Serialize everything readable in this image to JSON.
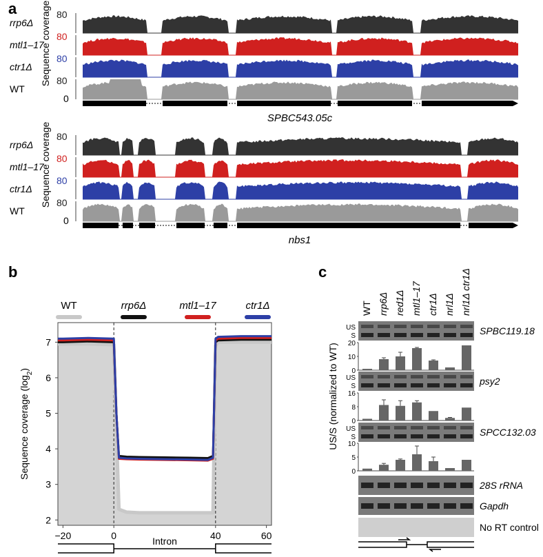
{
  "panel_a": {
    "label": "a",
    "ylabel": "Sequence coverage",
    "track_labels": [
      "rrp6Δ",
      "mtl1–17",
      "ctr1Δ",
      "WT"
    ],
    "track_colors": [
      "#333333",
      "#d0201f",
      "#2d3fa6",
      "#9a9a9a"
    ],
    "tick_top": "80",
    "tick_zero": "0",
    "genes": [
      "SPBC543.05c",
      "nbs1"
    ]
  },
  "panel_b": {
    "label": "b",
    "legend": [
      {
        "name": "WT",
        "color": "#c8c8c8"
      },
      {
        "name": "rrp6Δ",
        "color": "#111111"
      },
      {
        "name": "mtl1–17",
        "color": "#d0201f"
      },
      {
        "name": "ctr1Δ",
        "color": "#2d3fa6"
      }
    ],
    "xlabel": "Intron",
    "ylabel": "Sequence coverage (log2)"
  },
  "panel_c": {
    "label": "c",
    "lanes": [
      "WT",
      "rrp6Δ",
      "red1Δ",
      "mtl1–17",
      "ctr1Δ",
      "nrl1Δ",
      "nrl1Δ ctr1Δ"
    ],
    "genes": [
      "SPBC119.18",
      "psy2",
      "SPCC132.03"
    ],
    "controls": [
      "28S rRNA",
      "Gapdh",
      "No RT control"
    ],
    "band_us": "US",
    "band_s": "S",
    "ylabel": "US/S (normalized to WT)"
  },
  "chart_data": [
    {
      "type": "line",
      "title": "",
      "xlabel": "Intron",
      "ylabel": "Sequence coverage (log2)",
      "x": [
        -22,
        -20,
        -10,
        0,
        1,
        2,
        5,
        10,
        20,
        30,
        37,
        39,
        40,
        41,
        50,
        60,
        62
      ],
      "xticks": [
        -20,
        0,
        40,
        60
      ],
      "yticks": [
        2,
        3,
        4,
        5,
        6,
        7
      ],
      "xlim": [
        -22,
        62
      ],
      "ylim": [
        1.85,
        7.55
      ],
      "series": [
        {
          "name": "WT",
          "values": [
            6.95,
            6.95,
            6.95,
            6.93,
            4.5,
            2.3,
            2.22,
            2.2,
            2.2,
            2.2,
            2.2,
            2.2,
            6.9,
            7.0,
            7.0,
            7.0,
            7.0
          ]
        },
        {
          "name": "rrp6Δ",
          "values": [
            7.0,
            7.0,
            7.02,
            7.0,
            5.0,
            3.8,
            3.78,
            3.77,
            3.76,
            3.75,
            3.74,
            3.8,
            7.0,
            7.05,
            7.07,
            7.07,
            7.07
          ]
        },
        {
          "name": "mtl1–17",
          "values": [
            7.05,
            7.05,
            7.07,
            7.05,
            5.0,
            3.72,
            3.71,
            3.7,
            3.69,
            3.68,
            3.67,
            3.72,
            7.05,
            7.1,
            7.12,
            7.12,
            7.12
          ]
        },
        {
          "name": "ctr1Δ",
          "values": [
            7.1,
            7.1,
            7.12,
            7.1,
            5.0,
            3.75,
            3.73,
            3.72,
            3.71,
            3.7,
            3.69,
            3.75,
            7.1,
            7.15,
            7.17,
            7.17,
            7.17
          ]
        }
      ]
    },
    {
      "type": "bar",
      "title": "SPBC119.18",
      "categories": [
        "WT",
        "rrp6Δ",
        "red1Δ",
        "mtl1–17",
        "ctr1Δ",
        "nrl1Δ",
        "nrl1Δ ctr1Δ"
      ],
      "values": [
        1,
        8,
        10,
        16,
        7,
        2,
        18
      ],
      "errors": [
        0,
        1,
        3,
        0.5,
        0.5,
        0,
        0
      ],
      "yticks": [
        0,
        10,
        20
      ],
      "ylim": [
        0,
        20
      ]
    },
    {
      "type": "bar",
      "title": "psy2",
      "categories": [
        "WT",
        "rrp6Δ",
        "red1Δ",
        "mtl1–17",
        "ctr1Δ",
        "nrl1Δ",
        "nrl1Δ ctr1Δ"
      ],
      "values": [
        1,
        9,
        8.5,
        10.5,
        5.5,
        1.5,
        7.5
      ],
      "errors": [
        0,
        3,
        3,
        1,
        0,
        0.3,
        0
      ],
      "yticks": [
        0,
        8,
        16
      ],
      "ylim": [
        0,
        16
      ]
    },
    {
      "type": "bar",
      "title": "SPCC132.03",
      "categories": [
        "WT",
        "rrp6Δ",
        "red1Δ",
        "mtl1–17",
        "ctr1Δ",
        "nrl1Δ",
        "nrl1Δ ctr1Δ"
      ],
      "values": [
        0.8,
        2.2,
        4,
        6,
        3.5,
        1,
        4
      ],
      "errors": [
        0,
        0.5,
        0.3,
        3,
        1.5,
        0,
        0
      ],
      "yticks": [
        0,
        5,
        10
      ],
      "ylim": [
        0,
        10
      ]
    }
  ]
}
